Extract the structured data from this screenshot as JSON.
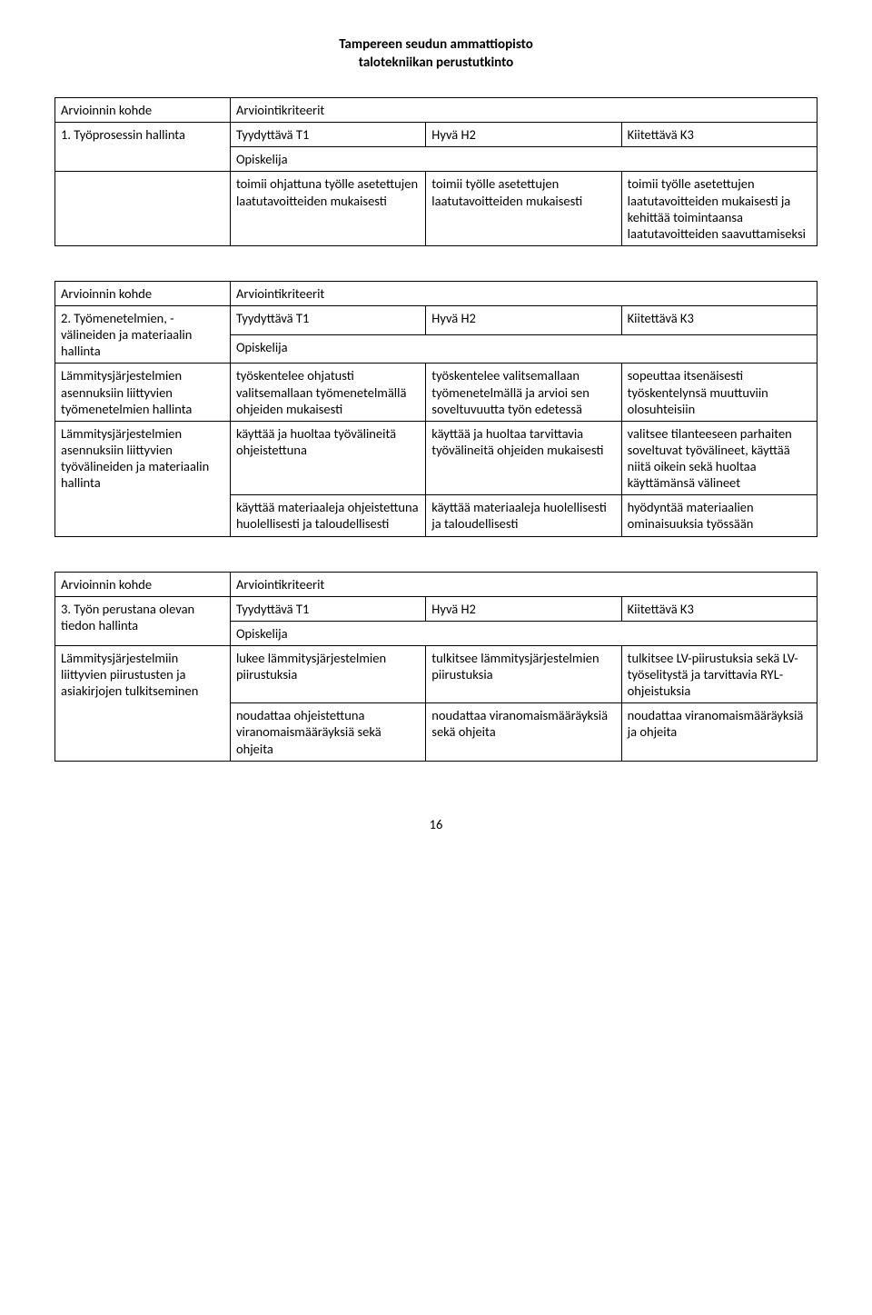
{
  "header": {
    "line1": "Tampereen seudun ammattiopisto",
    "line2": "talotekniikan perustutkinto"
  },
  "labels": {
    "arvkohde": "Arvioinnin kohde",
    "arvkrit": "Arviointikriteerit",
    "t1": "Tyydyttävä T1",
    "h2": "Hyvä H2",
    "k3": "Kiitettävä K3",
    "opiskelija": "Opiskelija"
  },
  "table1": {
    "kohde": "1. Työprosessin hallinta",
    "row": {
      "c1": "toimii ohjattuna työlle asetettujen laatutavoitteiden mukaisesti",
      "c2": "toimii työlle asetettujen laatutavoitteiden mukaisesti",
      "c3": "toimii työlle asetettujen laatutavoitteiden mukaisesti ja kehittää toimintaansa laatutavoitteiden saavuttamiseksi"
    }
  },
  "table2": {
    "kohde": "2. Työmenetelmien, -välineiden ja materiaalin hallinta",
    "sub1": {
      "label": "Lämmitysjärjestelmien asennuksiin liittyvien työmenetelmien hallinta",
      "c1": "työskentelee ohjatusti valitsemallaan työmenetelmällä ohjeiden mukaisesti",
      "c2": "työskentelee valitsemallaan työmenetelmällä ja arvioi sen soveltuvuutta työn edetessä",
      "c3": "sopeuttaa itsenäisesti työskentelynsä muuttuviin olosuhteisiin"
    },
    "sub2": {
      "label": "Lämmitysjärjestelmien asennuksiin liittyvien työvälineiden ja materiaalin hallinta",
      "r1c1": "käyttää ja huoltaa työvälineitä ohjeistettuna",
      "r1c2": "käyttää ja huoltaa tarvittavia työvälineitä ohjeiden mukaisesti",
      "r1c3": "valitsee tilanteeseen parhaiten soveltuvat työvälineet, käyttää niitä oikein sekä huoltaa käyttämänsä välineet",
      "r2c1": "käyttää materiaaleja ohjeistettuna huolellisesti ja taloudellisesti",
      "r2c2": "käyttää materiaaleja huolellisesti ja taloudellisesti",
      "r2c3": "hyödyntää materiaalien ominaisuuksia työssään"
    }
  },
  "table3": {
    "kohde": "3. Työn perustana olevan tiedon hallinta",
    "sub1": {
      "label": "Lämmitysjärjestelmiin liittyvien piirustusten ja asiakirjojen tulkitseminen",
      "r1c1": "lukee lämmitysjärjestelmien piirustuksia",
      "r1c2": "tulkitsee lämmitysjärjestelmien piirustuksia",
      "r1c3": "tulkitsee LV-piirustuksia sekä LV-työselitystä ja tarvittavia RYL-ohjeistuksia",
      "r2c1": "noudattaa ohjeistettuna viranomaismääräyksiä sekä ohjeita",
      "r2c2": "noudattaa viranomaismääräyksiä sekä ohjeita",
      "r2c3": "noudattaa viranomaismääräyksiä ja ohjeita"
    }
  },
  "pageNumber": "16"
}
